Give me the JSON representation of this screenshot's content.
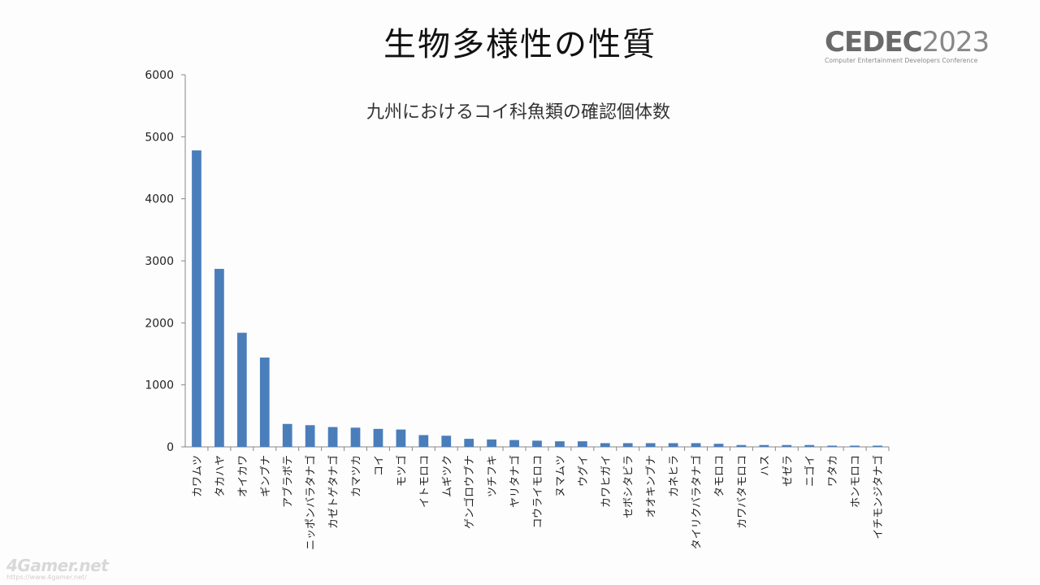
{
  "slide": {
    "title": "生物多様性の性質"
  },
  "logo": {
    "brand": "CEDEC",
    "year": "2023",
    "subtitle": "Computer Entertainment Developers Conference"
  },
  "watermark": {
    "main": "4Gamer.net",
    "url": "https://www.4gamer.net/"
  },
  "colors": {
    "bar": "#4a7ebb",
    "axis": "#868686"
  },
  "chart_data": {
    "type": "bar",
    "title": "九州におけるコイ科魚類の確認個体数",
    "xlabel": "",
    "ylabel": "",
    "ylim": [
      0,
      6000
    ],
    "yticks": [
      0,
      1000,
      2000,
      3000,
      4000,
      5000,
      6000
    ],
    "grid": false,
    "legend": "none",
    "categories": [
      "カワムツ",
      "タカハヤ",
      "オイカワ",
      "ギンブナ",
      "アブラボテ",
      "ニッポンバラタナゴ",
      "カゼトゲタナゴ",
      "カマツカ",
      "コイ",
      "モツゴ",
      "イトモロコ",
      "ムギツク",
      "ゲンゴロウブナ",
      "ツチフキ",
      "ヤリタナゴ",
      "コウライモロコ",
      "ヌマムツ",
      "ウグイ",
      "カワヒガイ",
      "セボシタビラ",
      "オオキンブナ",
      "カネヒラ",
      "タイリクバラタナゴ",
      "タモロコ",
      "カワバタモロコ",
      "ハス",
      "ゼゼラ",
      "ニゴイ",
      "ワタカ",
      "ホンモロコ",
      "イチモンジタナゴ"
    ],
    "values": [
      4780,
      2870,
      1840,
      1440,
      370,
      350,
      320,
      310,
      290,
      280,
      190,
      180,
      130,
      120,
      110,
      100,
      90,
      90,
      60,
      60,
      60,
      60,
      60,
      50,
      30,
      30,
      30,
      30,
      20,
      20,
      20
    ]
  }
}
